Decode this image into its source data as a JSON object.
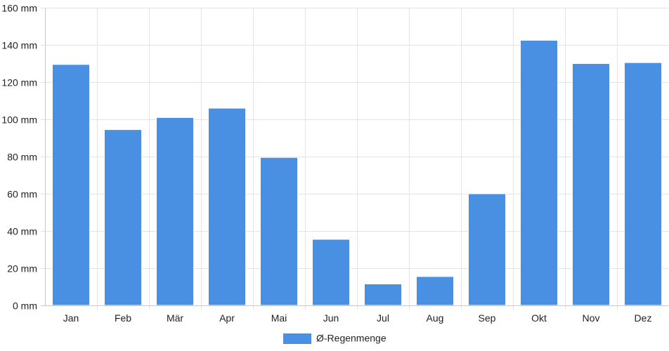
{
  "chart_data": {
    "type": "bar",
    "categories": [
      "Jan",
      "Feb",
      "Mär",
      "Apr",
      "Mai",
      "Jun",
      "Jul",
      "Aug",
      "Sep",
      "Okt",
      "Nov",
      "Dez"
    ],
    "series": [
      {
        "name": "Ø-Regenmenge",
        "values": [
          129.5,
          94.5,
          101,
          106,
          79.5,
          35.5,
          11.5,
          15.5,
          60,
          142.5,
          130,
          130.5
        ]
      }
    ],
    "ylim": [
      0,
      160
    ],
    "yticks": [
      0,
      20,
      40,
      60,
      80,
      100,
      120,
      140,
      160
    ],
    "ytick_labels": [
      "0 mm",
      "20 mm",
      "40 mm",
      "60 mm",
      "80 mm",
      "100 mm",
      "120 mm",
      "140 mm",
      "160 mm"
    ],
    "grid": true,
    "legend_position": "bottom-center",
    "colors": {
      "bar": "#4a90e2",
      "grid": "#e3e3e3",
      "axis": "#c8c8c8"
    }
  }
}
